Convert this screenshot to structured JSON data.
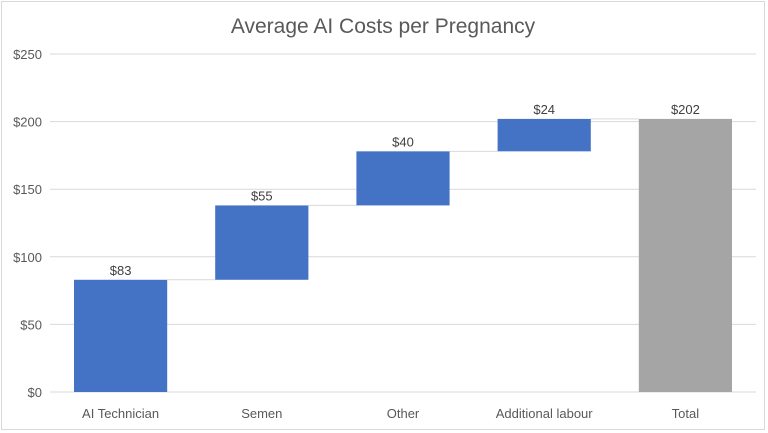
{
  "chart_data": {
    "type": "waterfall",
    "title": "Average AI Costs per Pregnancy",
    "categories": [
      "AI Technician",
      "Semen",
      "Other",
      "Additional labour",
      "Total"
    ],
    "values": [
      83,
      55,
      40,
      24,
      202
    ],
    "data_labels": [
      "$83",
      "$55",
      "$40",
      "$24",
      "$202"
    ],
    "is_total": [
      false,
      false,
      false,
      false,
      true
    ],
    "ylim": [
      0,
      250
    ],
    "yticks": [
      0,
      50,
      100,
      150,
      200,
      250
    ],
    "ytick_labels": [
      "$0",
      "$50",
      "$100",
      "$150",
      "$200",
      "$250"
    ],
    "grid": true,
    "legend": false,
    "colors": {
      "increase": "#4472c4",
      "total": "#a5a5a5",
      "grid": "#d9d9d9",
      "connector": "#d9d9d9"
    }
  }
}
